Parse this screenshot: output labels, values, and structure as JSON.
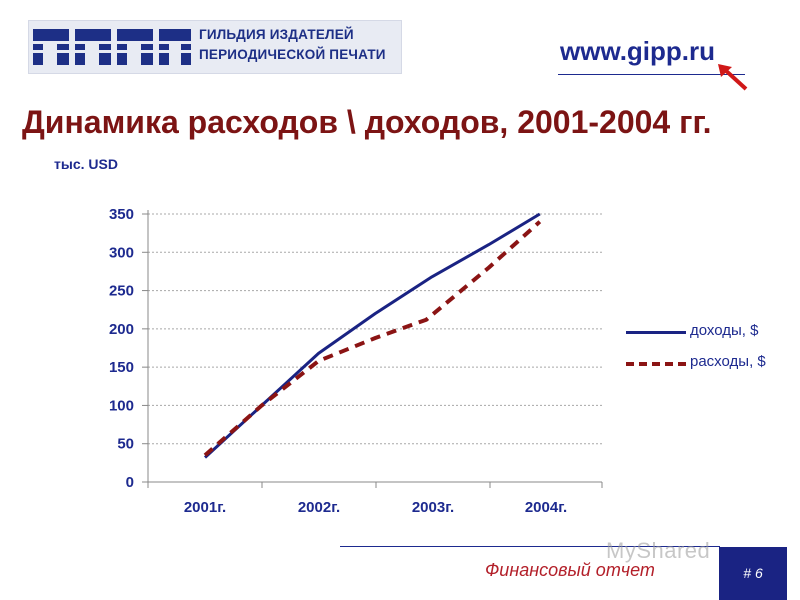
{
  "header": {
    "logo_line1": "ГИЛЬДИЯ ИЗДАТЕЛЕЙ",
    "logo_line2": "ПЕРИОДИЧЕСКОЙ ПЕЧАТИ",
    "url": "www.gipp.ru"
  },
  "title": "Динамика расходов \\ доходов, 2001-2004 гг.",
  "unit": "тыс. USD",
  "footer": {
    "label": "Финансовый отчет",
    "page_number": "# 6",
    "watermark": "MyShared"
  },
  "colors": {
    "title": "#7c1414",
    "brand": "#1d2a8f",
    "income_line": "#1a2383",
    "expense_line": "#8b1414",
    "footer_text": "#b3202a",
    "page_badge": "#1a2383"
  },
  "chart_data": {
    "type": "line",
    "categories": [
      "2001г.",
      "2002г.",
      "2003г.",
      "2004г."
    ],
    "x_positions": [
      0,
      1,
      2,
      3
    ],
    "series": [
      {
        "name": "доходы, $",
        "style": "solid",
        "points": [
          [
            0,
            32
          ],
          [
            0.5,
            100
          ],
          [
            1,
            168
          ],
          [
            1.5,
            220
          ],
          [
            2,
            268
          ],
          [
            2.5,
            310
          ],
          [
            2.95,
            350
          ]
        ]
      },
      {
        "name": "расходы, $",
        "style": "dashed",
        "points": [
          [
            0,
            35
          ],
          [
            0.5,
            100
          ],
          [
            1,
            158
          ],
          [
            1.5,
            188
          ],
          [
            1.95,
            212
          ],
          [
            2.5,
            280
          ],
          [
            2.95,
            340
          ]
        ]
      }
    ],
    "ylim": [
      0,
      350
    ],
    "yticks": [
      "0",
      "50",
      "100",
      "150",
      "200",
      "250",
      "300",
      "350"
    ],
    "ytick_values": [
      0,
      50,
      100,
      150,
      200,
      250,
      300,
      350
    ],
    "grid": true,
    "legend_position": "right"
  }
}
